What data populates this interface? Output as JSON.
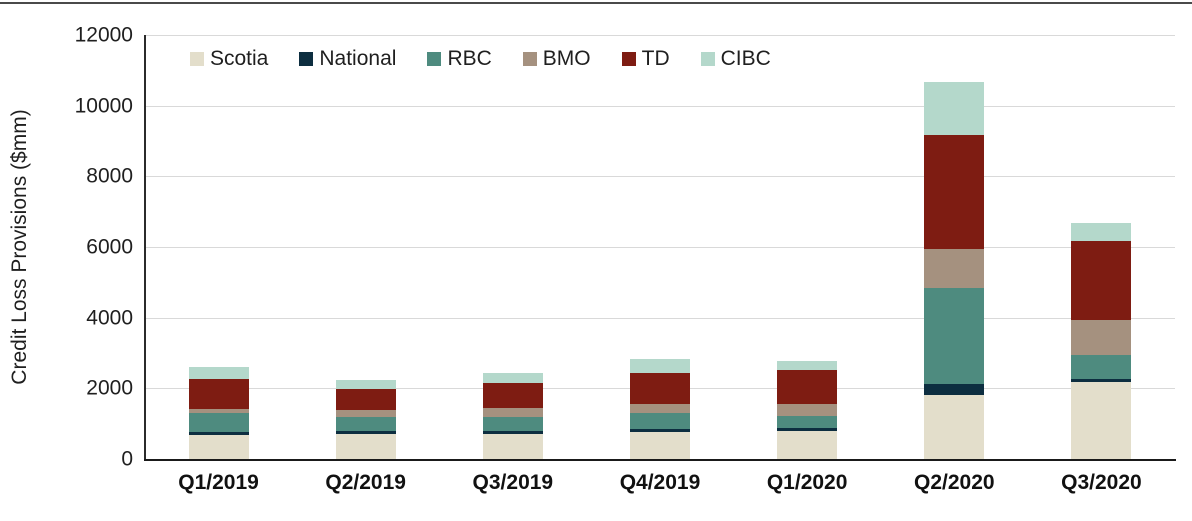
{
  "chart_data": {
    "type": "bar",
    "stacked": true,
    "title": "",
    "xlabel": "",
    "ylabel": "Credit Loss Provisions ($mm)",
    "ylim": [
      0,
      12000
    ],
    "yticks": [
      0,
      2000,
      4000,
      6000,
      8000,
      10000,
      12000
    ],
    "grid": true,
    "legend_position": "top-left-inside",
    "categories": [
      "Q1/2019",
      "Q2/2019",
      "Q3/2019",
      "Q4/2019",
      "Q1/2020",
      "Q2/2020",
      "Q3/2020"
    ],
    "series": [
      {
        "name": "Scotia",
        "color": "#e3decb",
        "values": [
          688,
          717,
          700,
          753,
          782,
          1800,
          2180
        ]
      },
      {
        "name": "National",
        "color": "#0d2e40",
        "values": [
          88,
          84,
          86,
          89,
          89,
          310,
          85
        ]
      },
      {
        "name": "RBC",
        "color": "#4e8b7f",
        "values": [
          514,
          400,
          410,
          460,
          345,
          2730,
          670
        ]
      },
      {
        "name": "BMO",
        "color": "#a5917f",
        "values": [
          137,
          185,
          255,
          250,
          330,
          1115,
          1010
        ]
      },
      {
        "name": "TD",
        "color": "#7e1c12",
        "values": [
          850,
          590,
          705,
          890,
          960,
          3220,
          2220
        ]
      },
      {
        "name": "CIBC",
        "color": "#b4d8cb",
        "values": [
          338,
          265,
          290,
          380,
          265,
          1485,
          520
        ]
      }
    ],
    "totals": [
      2615,
      2241,
      2446,
      2822,
      2771,
      10660,
      6685
    ]
  },
  "colors": {
    "background": "#ffffff",
    "gridline": "#d9d9d9",
    "axis": "#262626",
    "text": "#1f1f1f",
    "top_rule": "#4a4a4a"
  }
}
